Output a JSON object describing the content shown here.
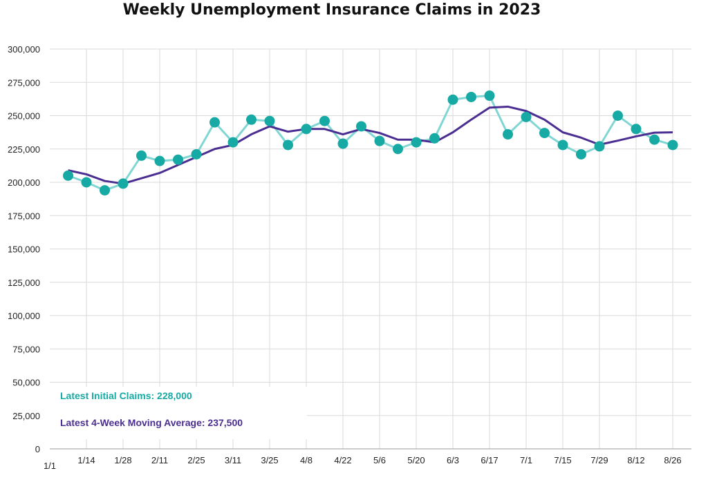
{
  "chart_data": {
    "type": "line",
    "title": "Weekly Unemployment Insurance Claims in 2023",
    "xlabel": "",
    "ylabel": "",
    "ylim": [
      0,
      300000
    ],
    "yticks": [
      "300,000",
      "275,000",
      "250,000",
      "225,000",
      "200,000",
      "175,000",
      "150,000",
      "125,000",
      "100,000",
      "75,000",
      "50,000",
      "25,000",
      "0"
    ],
    "x_tick_labels": [
      "1/1",
      "1/14",
      "1/28",
      "2/11",
      "2/25",
      "3/11",
      "3/25",
      "4/8",
      "4/22",
      "5/6",
      "5/20",
      "6/3",
      "6/17",
      "7/1",
      "7/15",
      "7/29",
      "8/12",
      "8/26"
    ],
    "grid": "both",
    "colors": {
      "initial_claims": "#17a9a4",
      "initial_claims_line": "#7fd6d3",
      "moving_average": "#4b2e91"
    },
    "series": [
      {
        "key": "initial_claims",
        "x": [
          "1/7",
          "1/14",
          "1/21",
          "1/28",
          "2/4",
          "2/11",
          "2/18",
          "2/25",
          "3/4",
          "3/11",
          "3/18",
          "3/25",
          "4/1",
          "4/8",
          "4/15",
          "4/22",
          "4/29",
          "5/6",
          "5/13",
          "5/20",
          "5/27",
          "6/3",
          "6/10",
          "6/17",
          "6/24",
          "7/1",
          "7/8",
          "7/15",
          "7/22",
          "7/29",
          "8/5",
          "8/12",
          "8/19",
          "8/26"
        ],
        "values": [
          205000,
          200000,
          194000,
          199000,
          220000,
          216000,
          217000,
          221000,
          245000,
          230000,
          247000,
          246000,
          228000,
          240000,
          246000,
          229000,
          242000,
          231000,
          225000,
          230000,
          233000,
          262000,
          264000,
          265000,
          236000,
          249000,
          237000,
          228000,
          221000,
          227000,
          250000,
          240000,
          232000,
          228000
        ]
      },
      {
        "key": "moving_average",
        "x": [
          "1/7",
          "1/14",
          "1/21",
          "1/28",
          "2/4",
          "2/11",
          "2/18",
          "2/25",
          "3/4",
          "3/11",
          "3/18",
          "3/25",
          "4/1",
          "4/8",
          "4/15",
          "4/22",
          "4/29",
          "5/6",
          "5/13",
          "5/20",
          "5/27",
          "6/3",
          "6/10",
          "6/17",
          "6/24",
          "7/1",
          "7/8",
          "7/15",
          "7/22",
          "7/29",
          "8/5",
          "8/12",
          "8/19",
          "8/26"
        ],
        "values": [
          209000,
          206000,
          201000,
          199000,
          203000,
          207000,
          213000,
          219000,
          225000,
          228000,
          236000,
          242000,
          238000,
          240000,
          240000,
          236000,
          240000,
          237000,
          232000,
          232000,
          230000,
          237500,
          247000,
          256000,
          256750,
          253500,
          247000,
          237500,
          233500,
          228250,
          231250,
          234500,
          237250,
          237500
        ]
      }
    ],
    "annotations": [
      {
        "key": "latest_initial",
        "text": "Latest Initial Claims: 228,000"
      },
      {
        "key": "latest_avg",
        "text": "Latest 4-Week Moving Average: 237,500"
      }
    ]
  }
}
